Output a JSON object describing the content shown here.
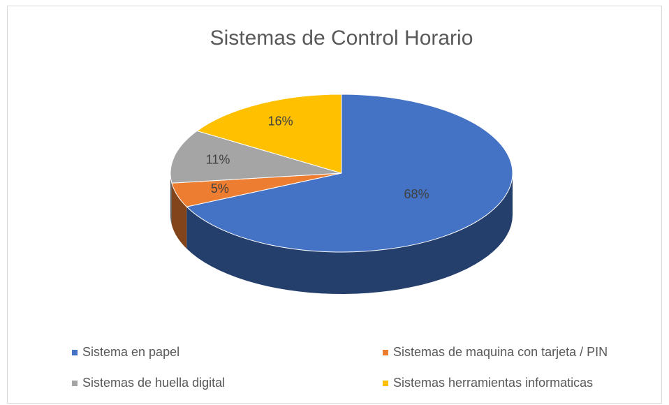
{
  "chart_data": {
    "type": "pie",
    "title": "Sistemas de Control Horario",
    "categories": [
      "Sistema en papel",
      "Sistemas de maquina con tarjeta / PIN",
      "Sistemas de huella digital",
      "Sistemas herramientas informaticas"
    ],
    "values": [
      68,
      5,
      11,
      16
    ],
    "value_labels": [
      "68%",
      "5%",
      "11%",
      "16%"
    ],
    "colors": [
      "#4472c4",
      "#ed7d31",
      "#a5a5a5",
      "#ffc000"
    ],
    "legend": "bottom"
  }
}
